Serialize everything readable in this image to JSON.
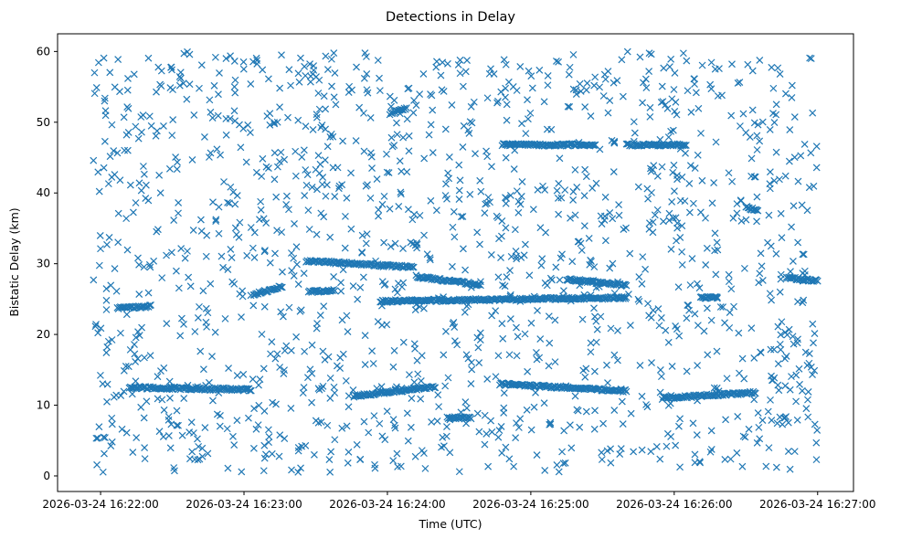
{
  "chart_data": {
    "type": "scatter",
    "title": "Detections in Delay",
    "xlabel": "Time (UTC)",
    "ylabel": "Bistatic Delay (km)",
    "marker": "x",
    "color": "#1f77b4",
    "grid": false,
    "legend": "none",
    "xlim": [
      "2026-03-24 16:21:42",
      "2026-03-24 16:27:15"
    ],
    "ylim": [
      -2.2,
      62.5
    ],
    "x_ticks": [
      "2026-03-24 16:22:00",
      "2026-03-24 16:23:00",
      "2026-03-24 16:24:00",
      "2026-03-24 16:25:00",
      "2026-03-24 16:26:00",
      "2026-03-24 16:27:00"
    ],
    "y_ticks": [
      0,
      10,
      20,
      30,
      40,
      50,
      60
    ],
    "data_range": {
      "x_start": "2026-03-24 16:21:57",
      "x_end": "2026-03-24 16:27:00",
      "y_min": 0.5,
      "y_max": 60
    },
    "tracks": [
      {
        "from": "2026-03-24 16:22:07",
        "to": "2026-03-24 16:22:21",
        "y_start": 23.7,
        "y_end": 24.0
      },
      {
        "from": "2026-03-24 16:22:12",
        "to": "2026-03-24 16:23:03",
        "y_start": 12.5,
        "y_end": 12.2
      },
      {
        "from": "2026-03-24 16:23:04",
        "to": "2026-03-24 16:23:16",
        "y_start": 25.6,
        "y_end": 26.8
      },
      {
        "from": "2026-03-24 16:23:26",
        "to": "2026-03-24 16:24:11",
        "y_start": 30.4,
        "y_end": 29.5
      },
      {
        "from": "2026-03-24 16:23:27",
        "to": "2026-03-24 16:23:38",
        "y_start": 26.0,
        "y_end": 26.3
      },
      {
        "from": "2026-03-24 16:23:46",
        "to": "2026-03-24 16:24:20",
        "y_start": 11.3,
        "y_end": 12.6
      },
      {
        "from": "2026-03-24 16:23:57",
        "to": "2026-03-24 16:25:40",
        "y_start": 24.7,
        "y_end": 25.2
      },
      {
        "from": "2026-03-24 16:24:01",
        "to": "2026-03-24 16:24:08",
        "y_start": 51.2,
        "y_end": 52.0
      },
      {
        "from": "2026-03-24 16:24:12",
        "to": "2026-03-24 16:24:39",
        "y_start": 28.2,
        "y_end": 27.0
      },
      {
        "from": "2026-03-24 16:24:25",
        "to": "2026-03-24 16:24:35",
        "y_start": 8.2,
        "y_end": 8.2
      },
      {
        "from": "2026-03-24 16:24:47",
        "to": "2026-03-24 16:25:40",
        "y_start": 13.0,
        "y_end": 12.0
      },
      {
        "from": "2026-03-24 16:24:48",
        "to": "2026-03-24 16:25:27",
        "y_start": 46.8,
        "y_end": 46.8
      },
      {
        "from": "2026-03-24 16:25:15",
        "to": "2026-03-24 16:25:40",
        "y_start": 27.8,
        "y_end": 26.9
      },
      {
        "from": "2026-03-24 16:25:40",
        "to": "2026-03-24 16:26:05",
        "y_start": 46.8,
        "y_end": 46.8
      },
      {
        "from": "2026-03-24 16:25:55",
        "to": "2026-03-24 16:26:34",
        "y_start": 11.0,
        "y_end": 11.8
      },
      {
        "from": "2026-03-24 16:26:11",
        "to": "2026-03-24 16:26:18",
        "y_start": 25.2,
        "y_end": 25.2
      },
      {
        "from": "2026-03-24 16:26:30",
        "to": "2026-03-24 16:26:35",
        "y_start": 38.0,
        "y_end": 37.5
      },
      {
        "from": "2026-03-24 16:26:47",
        "to": "2026-03-24 16:27:00",
        "y_start": 28.0,
        "y_end": 27.6
      }
    ],
    "scattered_points_count": 1500,
    "note_points": "Track segments above are the dense linear clusters; remaining detections are uniformly scattered between 0 and 60 km over the full time range."
  }
}
